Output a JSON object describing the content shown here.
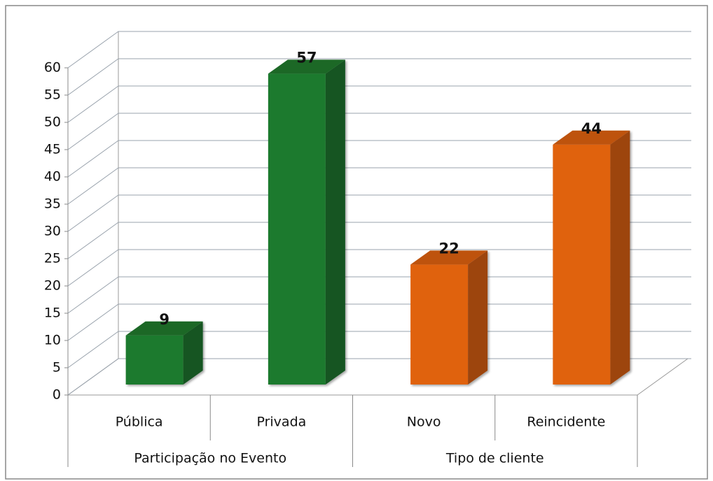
{
  "chart_data": {
    "type": "bar",
    "groups": [
      {
        "name": "Participação no Evento",
        "categories": [
          "Pública",
          "Privada"
        ],
        "values": [
          9,
          57
        ],
        "color": "#1f7a2e"
      },
      {
        "name": "Tipo de cliente",
        "categories": [
          "Novo",
          "Reincidente"
        ],
        "values": [
          22,
          44
        ],
        "color": "#e0620f"
      }
    ],
    "ylim": [
      0,
      60
    ],
    "yticks": [
      0,
      5,
      10,
      15,
      20,
      25,
      30,
      35,
      40,
      45,
      50,
      55,
      60
    ],
    "grid": true
  }
}
